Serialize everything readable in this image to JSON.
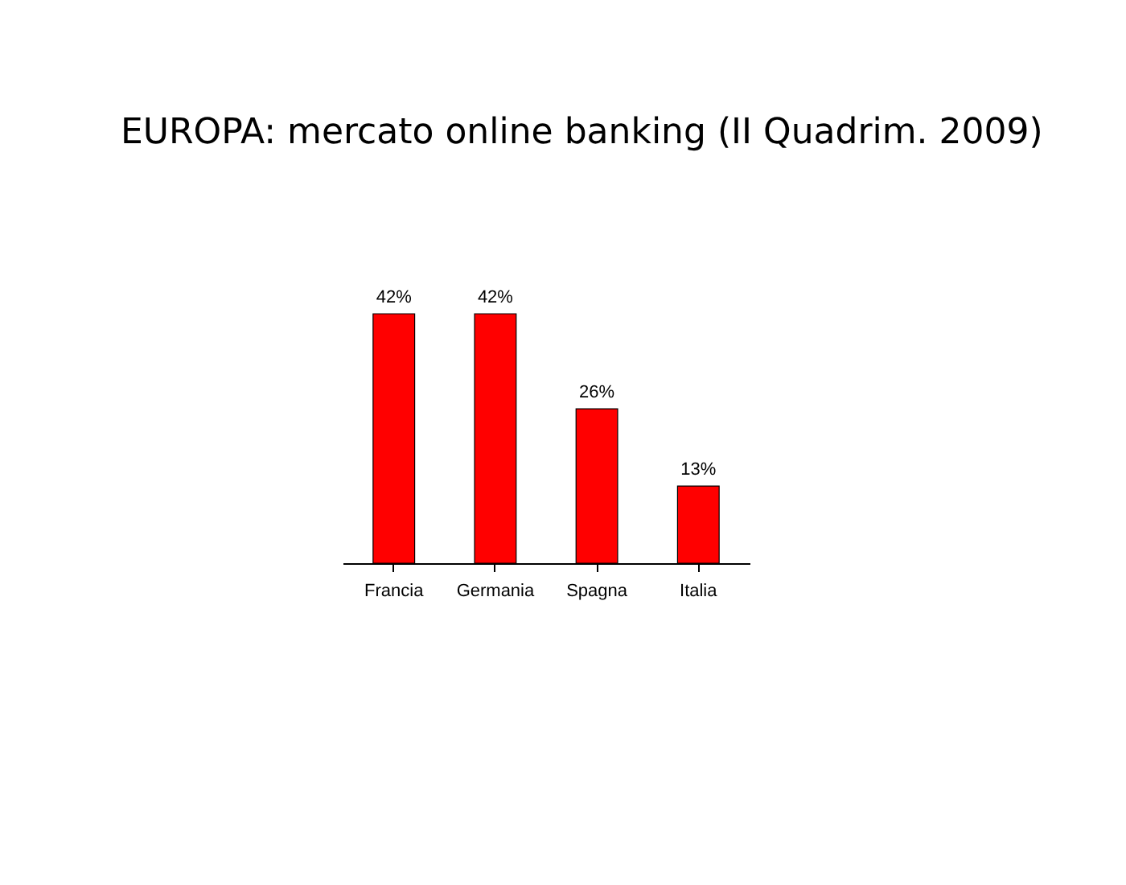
{
  "chart_data": {
    "type": "bar",
    "title": "EUROPA: mercato online banking (II Quadrim. 2009)",
    "categories": [
      "Francia",
      "Germania",
      "Spagna",
      "Italia"
    ],
    "values": [
      42,
      42,
      26,
      13
    ],
    "value_labels": [
      "42%",
      "42%",
      "26%",
      "13%"
    ],
    "color": "#ff0000"
  }
}
